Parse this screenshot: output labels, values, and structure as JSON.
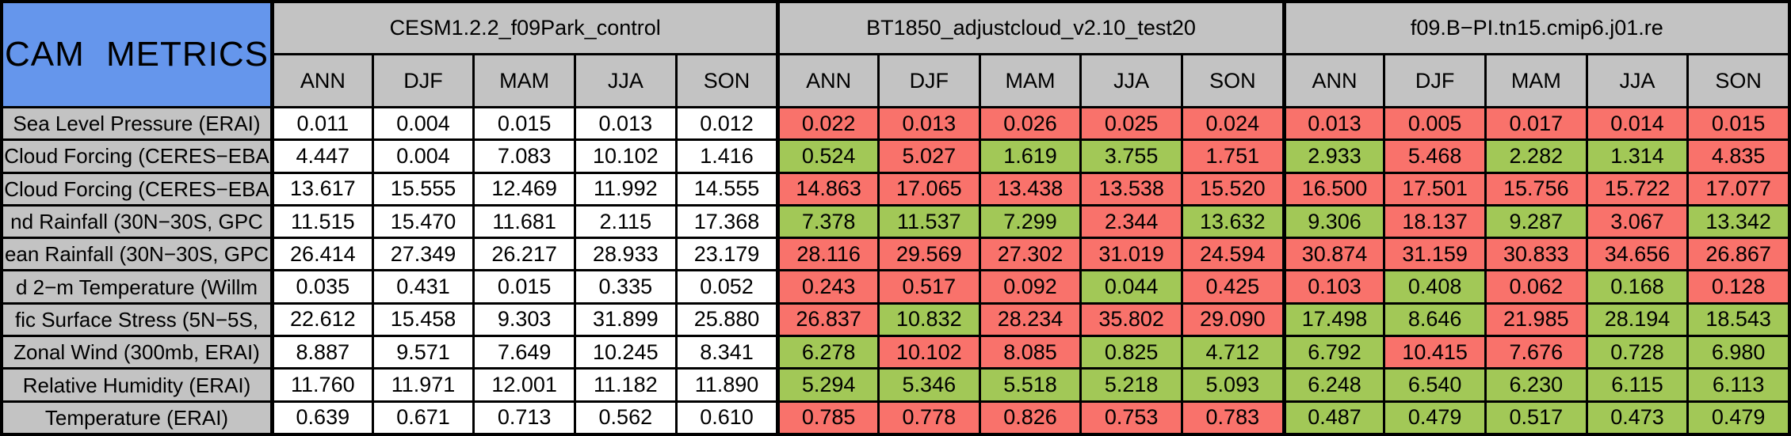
{
  "chart_data": {
    "type": "table",
    "title": "CAM METRICS",
    "column_groups": [
      "CESM1.2.2_f09Park_control",
      "BT1850_adjustcloud_v2.10_test20",
      "f09.B−PI.tn15.cmip6.j01.re"
    ],
    "season_columns": [
      "ANN",
      "DJF",
      "MAM",
      "JJA",
      "SON"
    ],
    "rows": [
      {
        "label": "Sea Level Pressure (ERAI)",
        "groups": [
          {
            "values": [
              "0.011",
              "0.004",
              "0.015",
              "0.013",
              "0.012"
            ],
            "colors": [
              "white",
              "white",
              "white",
              "white",
              "white"
            ]
          },
          {
            "values": [
              "0.022",
              "0.013",
              "0.026",
              "0.025",
              "0.024"
            ],
            "colors": [
              "red",
              "red",
              "red",
              "red",
              "red"
            ]
          },
          {
            "values": [
              "0.013",
              "0.005",
              "0.017",
              "0.014",
              "0.015"
            ],
            "colors": [
              "red",
              "red",
              "red",
              "red",
              "red"
            ]
          }
        ]
      },
      {
        "label": "Cloud Forcing (CERES−EBA",
        "groups": [
          {
            "values": [
              "4.447",
              "0.004",
              "7.083",
              "10.102",
              "1.416"
            ],
            "colors": [
              "white",
              "white",
              "white",
              "white",
              "white"
            ]
          },
          {
            "values": [
              "0.524",
              "5.027",
              "1.619",
              "3.755",
              "1.751"
            ],
            "colors": [
              "green",
              "red",
              "green",
              "green",
              "red"
            ]
          },
          {
            "values": [
              "2.933",
              "5.468",
              "2.282",
              "1.314",
              "4.835"
            ],
            "colors": [
              "green",
              "red",
              "green",
              "green",
              "red"
            ]
          }
        ]
      },
      {
        "label": "Cloud Forcing (CERES−EBA",
        "groups": [
          {
            "values": [
              "13.617",
              "15.555",
              "12.469",
              "11.992",
              "14.555"
            ],
            "colors": [
              "white",
              "white",
              "white",
              "white",
              "white"
            ]
          },
          {
            "values": [
              "14.863",
              "17.065",
              "13.438",
              "13.538",
              "15.520"
            ],
            "colors": [
              "red",
              "red",
              "red",
              "red",
              "red"
            ]
          },
          {
            "values": [
              "16.500",
              "17.501",
              "15.756",
              "15.722",
              "17.077"
            ],
            "colors": [
              "red",
              "red",
              "red",
              "red",
              "red"
            ]
          }
        ]
      },
      {
        "label": "nd Rainfall (30N−30S, GPC",
        "groups": [
          {
            "values": [
              "11.515",
              "15.470",
              "11.681",
              "2.115",
              "17.368"
            ],
            "colors": [
              "white",
              "white",
              "white",
              "white",
              "white"
            ]
          },
          {
            "values": [
              "7.378",
              "11.537",
              "7.299",
              "2.344",
              "13.632"
            ],
            "colors": [
              "green",
              "green",
              "green",
              "red",
              "green"
            ]
          },
          {
            "values": [
              "9.306",
              "18.137",
              "9.287",
              "3.067",
              "13.342"
            ],
            "colors": [
              "green",
              "red",
              "green",
              "red",
              "green"
            ]
          }
        ]
      },
      {
        "label": "ean Rainfall (30N−30S, GPC",
        "groups": [
          {
            "values": [
              "26.414",
              "27.349",
              "26.217",
              "28.933",
              "23.179"
            ],
            "colors": [
              "white",
              "white",
              "white",
              "white",
              "white"
            ]
          },
          {
            "values": [
              "28.116",
              "29.569",
              "27.302",
              "31.019",
              "24.594"
            ],
            "colors": [
              "red",
              "red",
              "red",
              "red",
              "red"
            ]
          },
          {
            "values": [
              "30.874",
              "31.159",
              "30.833",
              "34.656",
              "26.867"
            ],
            "colors": [
              "red",
              "red",
              "red",
              "red",
              "red"
            ]
          }
        ]
      },
      {
        "label": "d 2−m Temperature (Willm",
        "groups": [
          {
            "values": [
              "0.035",
              "0.431",
              "0.015",
              "0.335",
              "0.052"
            ],
            "colors": [
              "white",
              "white",
              "white",
              "white",
              "white"
            ]
          },
          {
            "values": [
              "0.243",
              "0.517",
              "0.092",
              "0.044",
              "0.425"
            ],
            "colors": [
              "red",
              "red",
              "red",
              "green",
              "red"
            ]
          },
          {
            "values": [
              "0.103",
              "0.408",
              "0.062",
              "0.168",
              "0.128"
            ],
            "colors": [
              "red",
              "green",
              "red",
              "green",
              "red"
            ]
          }
        ]
      },
      {
        "label": "fic Surface Stress (5N−5S,",
        "groups": [
          {
            "values": [
              "22.612",
              "15.458",
              "9.303",
              "31.899",
              "25.880"
            ],
            "colors": [
              "white",
              "white",
              "white",
              "white",
              "white"
            ]
          },
          {
            "values": [
              "26.837",
              "10.832",
              "28.234",
              "35.802",
              "29.090"
            ],
            "colors": [
              "red",
              "green",
              "red",
              "red",
              "red"
            ]
          },
          {
            "values": [
              "17.498",
              "8.646",
              "21.985",
              "28.194",
              "18.543"
            ],
            "colors": [
              "green",
              "green",
              "red",
              "green",
              "green"
            ]
          }
        ]
      },
      {
        "label": "Zonal Wind (300mb, ERAI)",
        "groups": [
          {
            "values": [
              "8.887",
              "9.571",
              "7.649",
              "10.245",
              "8.341"
            ],
            "colors": [
              "white",
              "white",
              "white",
              "white",
              "white"
            ]
          },
          {
            "values": [
              "6.278",
              "10.102",
              "8.085",
              "0.825",
              "4.712"
            ],
            "colors": [
              "green",
              "red",
              "red",
              "green",
              "green"
            ]
          },
          {
            "values": [
              "6.792",
              "10.415",
              "7.676",
              "0.728",
              "6.980"
            ],
            "colors": [
              "green",
              "red",
              "red",
              "green",
              "green"
            ]
          }
        ]
      },
      {
        "label": "Relative Humidity (ERAI)",
        "groups": [
          {
            "values": [
              "11.760",
              "11.971",
              "12.001",
              "11.182",
              "11.890"
            ],
            "colors": [
              "white",
              "white",
              "white",
              "white",
              "white"
            ]
          },
          {
            "values": [
              "5.294",
              "5.346",
              "5.518",
              "5.218",
              "5.093"
            ],
            "colors": [
              "green",
              "green",
              "green",
              "green",
              "green"
            ]
          },
          {
            "values": [
              "6.248",
              "6.540",
              "6.230",
              "6.115",
              "6.113"
            ],
            "colors": [
              "green",
              "green",
              "green",
              "green",
              "green"
            ]
          }
        ]
      },
      {
        "label": "Temperature (ERAI)",
        "groups": [
          {
            "values": [
              "0.639",
              "0.671",
              "0.713",
              "0.562",
              "0.610"
            ],
            "colors": [
              "white",
              "white",
              "white",
              "white",
              "white"
            ]
          },
          {
            "values": [
              "0.785",
              "0.778",
              "0.826",
              "0.753",
              "0.783"
            ],
            "colors": [
              "red",
              "red",
              "red",
              "red",
              "red"
            ]
          },
          {
            "values": [
              "0.487",
              "0.479",
              "0.517",
              "0.473",
              "0.479"
            ],
            "colors": [
              "green",
              "green",
              "green",
              "green",
              "green"
            ]
          }
        ]
      }
    ]
  },
  "theme": {
    "corner_blue": "#6596EC",
    "header_gray": "#C3C3C3",
    "cell_white": "#FFFFFF",
    "worse_red": "#F9726B",
    "better_green": "#A2C857",
    "border_black": "#000000",
    "text_black": "#000000"
  }
}
